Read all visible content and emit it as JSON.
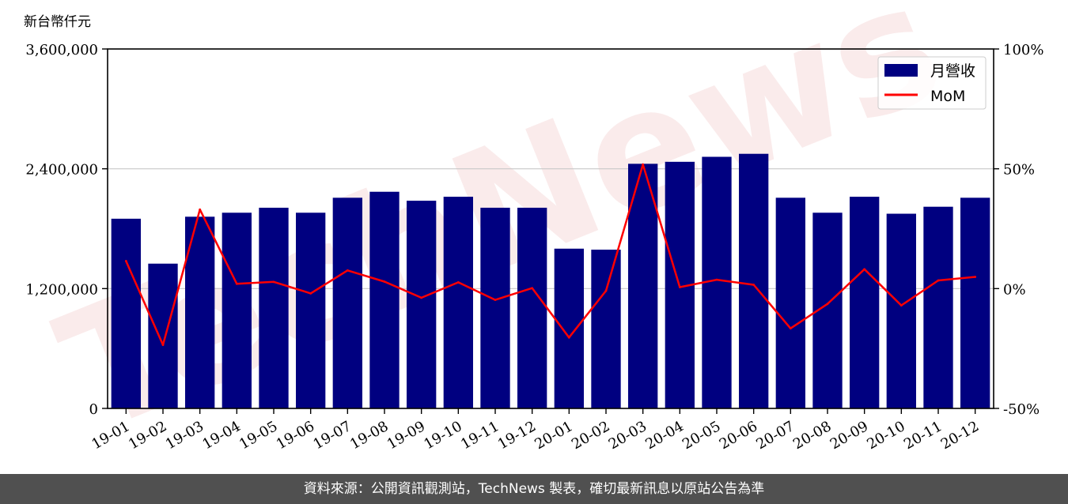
{
  "chart_data": {
    "type": "bar",
    "unit_label": "新台幣仟元",
    "categories": [
      "19-01",
      "19-02",
      "19-03",
      "19-04",
      "19-05",
      "19-06",
      "19-07",
      "19-08",
      "19-09",
      "19-10",
      "19-11",
      "19-12",
      "20-01",
      "20-02",
      "20-03",
      "20-04",
      "20-05",
      "20-06",
      "20-07",
      "20-08",
      "20-09",
      "20-10",
      "20-11",
      "20-12"
    ],
    "series": [
      {
        "name": "月營收",
        "type": "bar",
        "axis": "left",
        "color": "#000080",
        "values": [
          1900000,
          1450000,
          1920000,
          1960000,
          2010000,
          1960000,
          2110000,
          2170000,
          2080000,
          2120000,
          2010000,
          2010000,
          1600000,
          1590000,
          2450000,
          2470000,
          2520000,
          2550000,
          2110000,
          1960000,
          2120000,
          1950000,
          2020000,
          2110000
        ]
      },
      {
        "name": "MoM",
        "type": "line",
        "axis": "right",
        "color": "#ff0000",
        "values": [
          11.5,
          -23.5,
          33.0,
          2.0,
          2.8,
          -2.0,
          7.6,
          2.9,
          -3.8,
          2.6,
          -4.7,
          0.2,
          -20.4,
          -0.9,
          51.8,
          0.6,
          3.7,
          1.6,
          -16.6,
          -6.4,
          8.1,
          -7.0,
          3.4,
          4.9
        ]
      }
    ],
    "y_left": {
      "min": 0,
      "max": 3600000,
      "ticks": [
        "0",
        "1,200,000",
        "2,400,000",
        "3,600,000"
      ],
      "tick_values": [
        0,
        1200000,
        2400000,
        3600000
      ]
    },
    "y_right": {
      "min": -50,
      "max": 100,
      "ticks": [
        "-50%",
        "0%",
        "50%",
        "100%"
      ],
      "tick_values": [
        -50,
        0,
        50,
        100
      ]
    },
    "grid": "horizontal",
    "legend_position": "top-right"
  },
  "watermark": "TechNews",
  "footer": {
    "source_text": "資料來源：公開資訊觀測站，TechNews 製表，確切最新訊息以原站公告為準"
  }
}
